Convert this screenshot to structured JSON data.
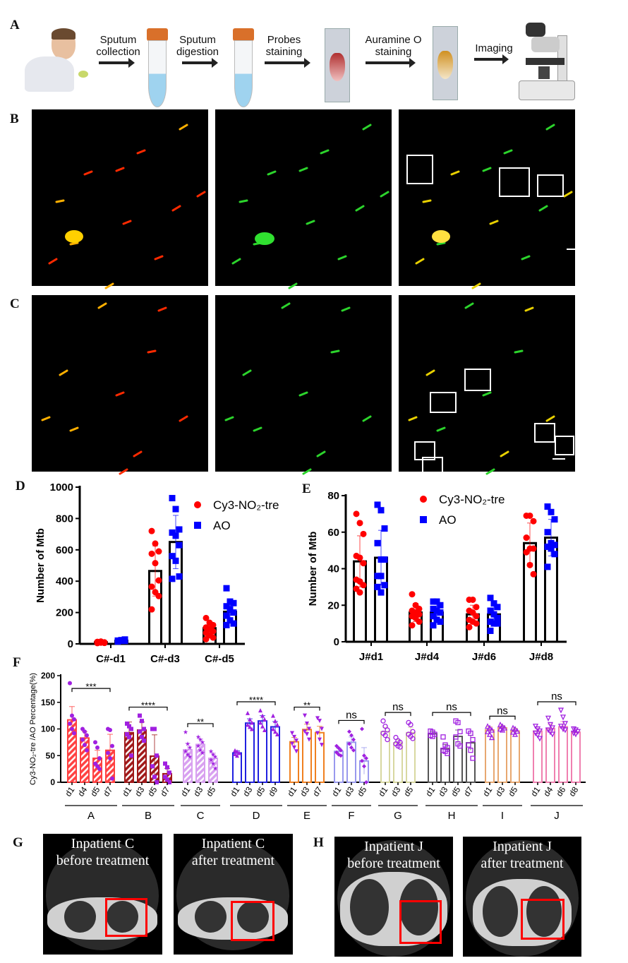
{
  "panel_labels": {
    "A": "A",
    "B": "B",
    "C": "C",
    "D": "D",
    "E": "E",
    "F": "F",
    "G": "G",
    "H": "H"
  },
  "workflow": {
    "steps": [
      "Sputum\ncollection",
      "Sputum\ndigestion",
      "Probes\nstaining",
      "Auramine O\nstaining",
      "Imaging"
    ]
  },
  "ct_scans": [
    {
      "title": "Inpatient C\nbefore treatment"
    },
    {
      "title": "Inpatient C\nafter treatment"
    },
    {
      "title": "Inpatient J\nbefore treatment"
    },
    {
      "title": "Inpatient J\nafter treatment"
    }
  ],
  "colors": {
    "red_series": "#ff0000",
    "blue_series": "#0000ff",
    "points_F": "#a020e0",
    "ct_box": "#ff0000"
  },
  "chart_data": [
    {
      "panel": "D",
      "type": "bar",
      "ylabel": "Number of Mtb",
      "ylim": [
        0,
        1000
      ],
      "yticks": [
        0,
        200,
        400,
        600,
        800,
        1000
      ],
      "categories": [
        "C#-d1",
        "C#-d3",
        "C#-d5"
      ],
      "series": [
        {
          "name": "Cy3-NO₂-tre",
          "color": "#ff0000",
          "marker": "circle",
          "means": [
            10,
            465,
            100
          ],
          "sd": [
            3,
            160,
            40
          ],
          "points": [
            [
              5,
              8,
              10,
              12,
              15,
              6,
              9,
              11,
              7,
              13
            ],
            [
              720,
              640,
              590,
              575,
              515,
              405,
              365,
              330,
              305,
              220
            ],
            [
              165,
              135,
              120,
              105,
              95,
              80,
              70,
              55,
              40,
              30
            ]
          ]
        },
        {
          "name": "AO",
          "color": "#0000ff",
          "marker": "square",
          "means": [
            20,
            650,
            205
          ],
          "sd": [
            4,
            170,
            70
          ],
          "points": [
            [
              15,
              20,
              25,
              18,
              22,
              28,
              16,
              24,
              19,
              21
            ],
            [
              930,
              860,
              730,
              710,
              690,
              630,
              560,
              530,
              430,
              415
            ],
            [
              355,
              270,
              260,
              240,
              220,
              200,
              180,
              150,
              130,
              120
            ]
          ]
        }
      ],
      "legend": "top-right"
    },
    {
      "panel": "E",
      "type": "bar",
      "ylabel": "Number of Mtb",
      "ylim": [
        0,
        80
      ],
      "yticks": [
        0,
        20,
        40,
        60,
        80
      ],
      "categories": [
        "J#d1",
        "J#d4",
        "J#d6",
        "J#d8"
      ],
      "series": [
        {
          "name": "Cy3-NO₂-tre",
          "color": "#ff0000",
          "marker": "circle",
          "means": [
            44,
            16,
            15,
            54
          ],
          "sd": [
            14,
            5,
            5,
            11
          ],
          "points": [
            [
              70,
              65,
              59,
              47,
              46,
              43,
              34,
              33,
              31,
              29,
              27
            ],
            [
              26,
              20,
              18,
              17,
              16,
              15,
              14,
              13,
              11,
              9
            ],
            [
              23,
              23,
              19,
              17,
              16,
              14,
              12,
              11,
              10,
              8
            ],
            [
              69,
              69,
              66,
              57,
              51,
              51,
              49,
              42,
              37
            ]
          ]
        },
        {
          "name": "AO",
          "color": "#0000ff",
          "marker": "square",
          "means": [
            46,
            16,
            15,
            57
          ],
          "sd": [
            15,
            4.5,
            5,
            10
          ],
          "points": [
            [
              75,
              72,
              62,
              54,
              45,
              45,
              36,
              36,
              31,
              30,
              27
            ],
            [
              22,
              22,
              20,
              18,
              17,
              16,
              14,
              12,
              11,
              9
            ],
            [
              24,
              21,
              19,
              17,
              15,
              13,
              11,
              10,
              10,
              6
            ],
            [
              74,
              71,
              67,
              60,
              54,
              53,
              52,
              51,
              48,
              41
            ]
          ]
        }
      ],
      "legend": "top-center"
    },
    {
      "panel": "F",
      "type": "bar",
      "ylabel": "Cy3-NO₂-tre /AO Percentage(%)",
      "ylim": [
        0,
        200
      ],
      "yticks": [
        0,
        50,
        100,
        150,
        200
      ],
      "groups": [
        {
          "name": "A",
          "color": "#ff4040",
          "hatched": true,
          "marker": "circle",
          "sig": "***",
          "bars": [
            {
              "label": "d1",
              "mean": 117,
              "sd": 25,
              "points": [
                186,
                125,
                118,
                110,
                100,
                92
              ]
            },
            {
              "label": "d4",
              "mean": 83,
              "sd": 12,
              "points": [
                100,
                95,
                88,
                80,
                70,
                60
              ]
            },
            {
              "label": "d5",
              "mean": 45,
              "sd": 15,
              "points": [
                75,
                65,
                45,
                35,
                30,
                25
              ]
            },
            {
              "label": "d7",
              "mean": 60,
              "sd": 30,
              "points": [
                100,
                98,
                68,
                55,
                45,
                7
              ]
            }
          ]
        },
        {
          "name": "B",
          "color": "#a01818",
          "hatched": true,
          "marker": "square",
          "sig": "****",
          "bars": [
            {
              "label": "d1",
              "mean": 93,
              "sd": 20,
              "points": [
                110,
                105,
                100,
                90,
                85,
                50
              ]
            },
            {
              "label": "d3",
              "mean": 98,
              "sd": 15,
              "points": [
                125,
                115,
                100,
                95,
                85,
                78
              ]
            },
            {
              "label": "d5",
              "mean": 49,
              "sd": 40,
              "points": [
                100,
                100,
                50,
                30,
                10,
                0
              ]
            },
            {
              "label": "d7",
              "mean": 16,
              "sd": 10,
              "points": [
                35,
                28,
                18,
                10,
                5,
                0
              ]
            }
          ]
        },
        {
          "name": "C",
          "color": "#d8a0f0",
          "hatched": true,
          "marker": "star",
          "sig": "**",
          "bars": [
            {
              "label": "d1",
              "mean": 61,
              "sd": 12,
              "points": [
                94,
                72,
                65,
                58,
                52,
                48
              ]
            },
            {
              "label": "d3",
              "mean": 71,
              "sd": 10,
              "points": [
                85,
                80,
                75,
                68,
                60,
                55
              ]
            },
            {
              "label": "d5",
              "mean": 45,
              "sd": 10,
              "points": [
                58,
                52,
                48,
                42,
                35,
                26
              ]
            }
          ]
        },
        {
          "name": "D",
          "color": "#2020e0",
          "hatched": false,
          "marker": "triangle",
          "sig": "****",
          "bars": [
            {
              "label": "d1",
              "mean": 55,
              "sd": 4,
              "points": [
                60,
                58,
                55,
                53,
                50
              ]
            },
            {
              "label": "d3",
              "mean": 111,
              "sd": 8,
              "points": [
                130,
                118,
                112,
                108,
                104,
                100
              ]
            },
            {
              "label": "d5",
              "mean": 115,
              "sd": 10,
              "points": [
                135,
                125,
                118,
                112,
                105,
                98
              ]
            },
            {
              "label": "d9",
              "mean": 104,
              "sd": 10,
              "points": [
                125,
                115,
                108,
                100,
                95,
                90
              ]
            }
          ]
        },
        {
          "name": "E",
          "color": "#f08020",
          "hatched": false,
          "marker": "triangle-down",
          "sig": "**",
          "bars": [
            {
              "label": "d1",
              "mean": 76,
              "sd": 8,
              "points": [
                92,
                85,
                78,
                72,
                65,
                58
              ]
            },
            {
              "label": "d3",
              "mean": 99,
              "sd": 10,
              "points": [
                125,
                110,
                100,
                95,
                90,
                80
              ]
            },
            {
              "label": "d7",
              "mean": 93,
              "sd": 12,
              "points": [
                120,
                115,
                100,
                92,
                80,
                70
              ]
            }
          ]
        },
        {
          "name": "F",
          "color": "#9999ee",
          "hatched": false,
          "marker": "diamond",
          "sig": "ns",
          "bars": [
            {
              "label": "d1",
              "mean": 58,
              "sd": 6,
              "points": [
                68,
                64,
                60,
                56,
                52,
                50
              ]
            },
            {
              "label": "d3",
              "mean": 75,
              "sd": 10,
              "points": [
                95,
                88,
                80,
                72,
                65,
                60
              ]
            },
            {
              "label": "d5",
              "mean": 40,
              "sd": 25,
              "points": [
                100,
                50,
                45,
                40,
                30,
                0
              ]
            }
          ]
        },
        {
          "name": "G",
          "color": "#d8d8a0",
          "hatched": false,
          "marker": "open-circle",
          "sig": "ns",
          "bars": [
            {
              "label": "d1",
              "mean": 95,
              "sd": 8,
              "points": [
                115,
                105,
                98,
                92,
                88,
                80
              ]
            },
            {
              "label": "d3",
              "mean": 74,
              "sd": 6,
              "points": [
                84,
                78,
                75,
                72,
                68,
                66
              ]
            },
            {
              "label": "d5",
              "mean": 93,
              "sd": 10,
              "points": [
                112,
                108,
                95,
                90,
                86,
                82
              ]
            }
          ]
        },
        {
          "name": "H",
          "color": "#555555",
          "hatched": false,
          "marker": "open-square",
          "sig": "ns",
          "bars": [
            {
              "label": "d1",
              "mean": 91,
              "sd": 4,
              "points": [
                96,
                94,
                90,
                88,
                86
              ]
            },
            {
              "label": "d3",
              "mean": 63,
              "sd": 8,
              "points": [
                85,
                70,
                65,
                60,
                58,
                54
              ]
            },
            {
              "label": "d5",
              "mean": 86,
              "sd": 12,
              "points": [
                115,
                112,
                95,
                85,
                72,
                68
              ]
            },
            {
              "label": "d7",
              "mean": 74,
              "sd": 14,
              "points": [
                96,
                92,
                80,
                70,
                60,
                45
              ]
            }
          ]
        },
        {
          "name": "I",
          "color": "#e8a870",
          "hatched": false,
          "marker": "open-triangle",
          "sig": "ns",
          "bars": [
            {
              "label": "d1",
              "mean": 98,
              "sd": 6,
              "points": [
                105,
                102,
                98,
                95,
                90,
                84
              ]
            },
            {
              "label": "d3",
              "mean": 102,
              "sd": 4,
              "points": [
                108,
                105,
                102,
                100,
                98
              ]
            },
            {
              "label": "d5",
              "mean": 96,
              "sd": 5,
              "points": [
                102,
                100,
                96,
                94,
                90
              ]
            }
          ]
        },
        {
          "name": "J",
          "color": "#f080b0",
          "hatched": false,
          "marker": "open-triangle-down",
          "sig": "ns",
          "bars": [
            {
              "label": "d1",
              "mean": 96,
              "sd": 8,
              "points": [
                105,
                100,
                96,
                92,
                88,
                82
              ]
            },
            {
              "label": "d4",
              "mean": 101,
              "sd": 8,
              "points": [
                120,
                108,
                102,
                98,
                94,
                90
              ]
            },
            {
              "label": "d6",
              "mean": 104,
              "sd": 10,
              "points": [
                135,
                122,
                110,
                105,
                100,
                98
              ]
            },
            {
              "label": "d8",
              "mean": 94,
              "sd": 5,
              "points": [
                100,
                98,
                95,
                92,
                90
              ]
            }
          ]
        }
      ]
    }
  ]
}
